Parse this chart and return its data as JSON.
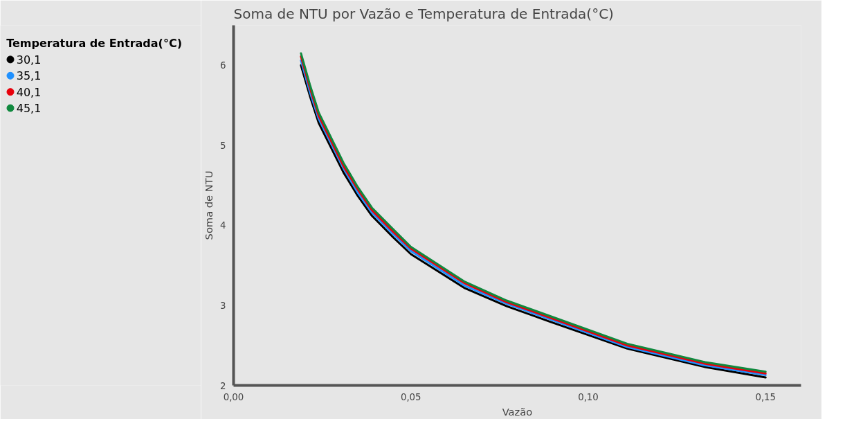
{
  "chart_data": {
    "type": "line",
    "title": "Soma de NTU por Vazão e Temperatura de Entrada(°C)",
    "xlabel": "Vazão",
    "ylabel": "Soma de NTU",
    "legend_title": "Temperatura de Entrada(°C)",
    "legend": "top left",
    "x": [
      0.019,
      0.0215,
      0.024,
      0.031,
      0.035,
      0.039,
      0.045,
      0.05,
      0.065,
      0.077,
      0.089,
      0.111,
      0.133,
      0.15
    ],
    "series": [
      {
        "name": "30,1",
        "color": "#000000",
        "values": [
          6.0,
          5.62,
          5.28,
          4.66,
          4.37,
          4.12,
          3.85,
          3.64,
          3.22,
          2.99,
          2.8,
          2.46,
          2.23,
          2.1
        ]
      },
      {
        "name": "35,1",
        "color": "#1e90ff",
        "values": [
          6.06,
          5.67,
          5.33,
          4.71,
          4.41,
          4.16,
          3.89,
          3.68,
          3.25,
          3.02,
          2.83,
          2.48,
          2.25,
          2.13
        ]
      },
      {
        "name": "40,1",
        "color": "#e8000b",
        "values": [
          6.11,
          5.72,
          5.37,
          4.74,
          4.45,
          4.19,
          3.92,
          3.71,
          3.28,
          3.04,
          2.85,
          2.5,
          2.27,
          2.15
        ]
      },
      {
        "name": "45,1",
        "color": "#10893e",
        "values": [
          6.15,
          5.76,
          5.41,
          4.78,
          4.48,
          4.22,
          3.95,
          3.73,
          3.3,
          3.06,
          2.87,
          2.52,
          2.29,
          2.17
        ]
      }
    ],
    "xlim": [
      0,
      0.16
    ],
    "ylim": [
      2,
      6.5
    ],
    "xticks": [
      {
        "value": 0,
        "label": "0,00"
      },
      {
        "value": 0.05,
        "label": "0,05"
      },
      {
        "value": 0.1,
        "label": "0,10"
      },
      {
        "value": 0.15,
        "label": "0,15"
      }
    ],
    "yticks": [
      2,
      3,
      4,
      5,
      6
    ]
  }
}
